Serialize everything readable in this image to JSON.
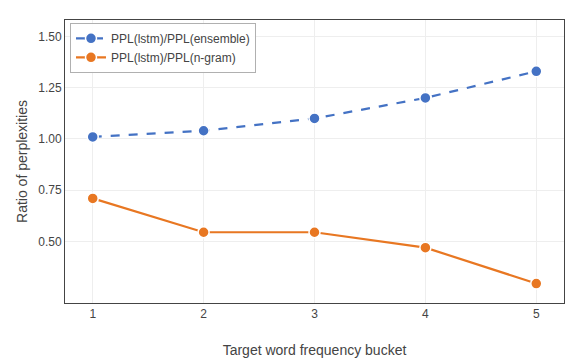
{
  "chart_data": {
    "type": "line",
    "x": [
      1,
      2,
      3,
      4,
      5
    ],
    "series": [
      {
        "name": "PPL(lstm)/PPL(ensemble)",
        "color": "#4472c4",
        "values": [
          1.01,
          1.04,
          1.1,
          1.2,
          1.33
        ],
        "line_style": "dashed",
        "marker": "circle"
      },
      {
        "name": "PPL(lstm)/PPL(n-gram)",
        "color": "#e87722",
        "values": [
          0.71,
          0.545,
          0.545,
          0.47,
          0.295
        ],
        "line_style": "solid",
        "marker": "circle"
      }
    ],
    "xlabel": "Target word frequency bucket",
    "ylabel": "Ratio of perplexities",
    "xlim": [
      0.75,
      5.25
    ],
    "xticks": [
      1,
      2,
      3,
      4,
      5
    ],
    "ylim": [
      0.2,
      1.58
    ],
    "yticks": [
      {
        "value": 0.5,
        "label": "0.50"
      },
      0.75,
      {
        "value": 1.0,
        "label": "1.00"
      },
      1.25,
      {
        "value": 1.5,
        "label": "1.50"
      }
    ],
    "grid": true,
    "legend": "upper left"
  }
}
